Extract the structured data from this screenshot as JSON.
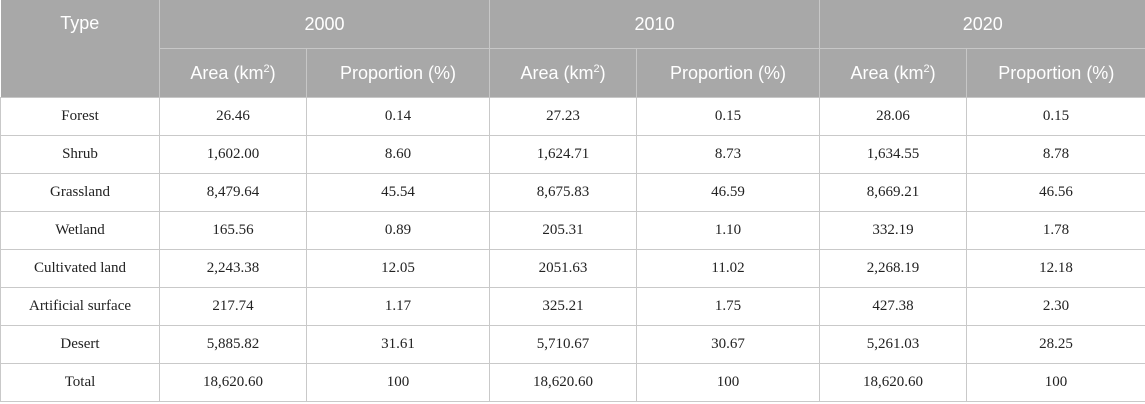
{
  "header": {
    "type_label": "Type",
    "years": [
      "2000",
      "2010",
      "2020"
    ],
    "area_label_prefix": "Area (km",
    "area_label_sup": "2",
    "area_label_suffix": ")",
    "proportion_label": "Proportion (%)"
  },
  "rows": [
    {
      "type": "Forest",
      "v": [
        "26.46",
        "0.14",
        "27.23",
        "0.15",
        "28.06",
        "0.15"
      ]
    },
    {
      "type": "Shrub",
      "v": [
        "1,602.00",
        "8.60",
        "1,624.71",
        "8.73",
        "1,634.55",
        "8.78"
      ]
    },
    {
      "type": "Grassland",
      "v": [
        "8,479.64",
        "45.54",
        "8,675.83",
        "46.59",
        "8,669.21",
        "46.56"
      ]
    },
    {
      "type": "Wetland",
      "v": [
        "165.56",
        "0.89",
        "205.31",
        "1.10",
        "332.19",
        "1.78"
      ]
    },
    {
      "type": "Cultivated land",
      "v": [
        "2,243.38",
        "12.05",
        "2051.63",
        "11.02",
        "2,268.19",
        "12.18"
      ]
    },
    {
      "type": "Artificial surface",
      "v": [
        "217.74",
        "1.17",
        "325.21",
        "1.75",
        "427.38",
        "2.30"
      ]
    },
    {
      "type": "Desert",
      "v": [
        "5,885.82",
        "31.61",
        "5,710.67",
        "30.67",
        "5,261.03",
        "28.25"
      ]
    },
    {
      "type": "Total",
      "v": [
        "18,620.60",
        "100",
        "18,620.60",
        "100",
        "18,620.60",
        "100"
      ]
    }
  ]
}
